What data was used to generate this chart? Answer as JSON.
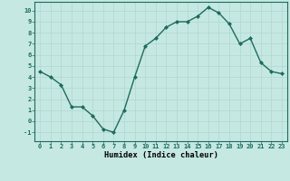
{
  "x": [
    0,
    1,
    2,
    3,
    4,
    5,
    6,
    7,
    8,
    9,
    10,
    11,
    12,
    13,
    14,
    15,
    16,
    17,
    18,
    19,
    20,
    21,
    22,
    23
  ],
  "y": [
    4.5,
    4.0,
    3.3,
    1.3,
    1.3,
    0.5,
    -0.7,
    -1.0,
    1.0,
    4.0,
    6.8,
    7.5,
    8.5,
    9.0,
    9.0,
    9.5,
    10.3,
    9.8,
    8.8,
    7.0,
    7.5,
    5.3,
    4.5,
    4.3
  ],
  "xlabel": "Humidex (Indice chaleur)",
  "ylim": [
    -1.8,
    10.8
  ],
  "xlim": [
    -0.5,
    23.5
  ],
  "line_color": "#1f6b5e",
  "marker_color": "#1f6b5e",
  "bg_color": "#c5e8e3",
  "grid_color": "#b0d8d0",
  "yticks": [
    -1,
    0,
    1,
    2,
    3,
    4,
    5,
    6,
    7,
    8,
    9,
    10
  ],
  "xticks": [
    0,
    1,
    2,
    3,
    4,
    5,
    6,
    7,
    8,
    9,
    10,
    11,
    12,
    13,
    14,
    15,
    16,
    17,
    18,
    19,
    20,
    21,
    22,
    23
  ],
  "tick_fontsize": 5.0,
  "xlabel_fontsize": 6.2
}
